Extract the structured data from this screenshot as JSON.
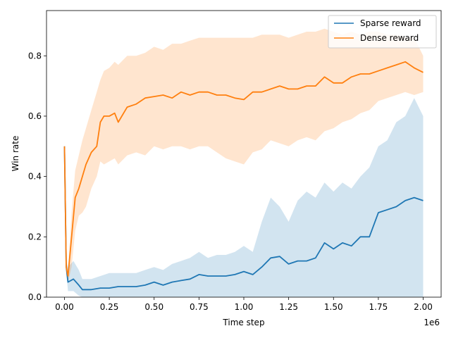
{
  "chart_data": {
    "type": "line",
    "title": "",
    "xlabel": "Time step",
    "ylabel": "Win rate",
    "x_offset_label": "1e6",
    "xlim": [
      -0.1,
      2.1
    ],
    "ylim": [
      0.0,
      0.95
    ],
    "x_ticks": [
      0.0,
      0.25,
      0.5,
      0.75,
      1.0,
      1.25,
      1.5,
      1.75,
      2.0
    ],
    "x_tick_labels": [
      "0.00",
      "0.25",
      "0.50",
      "0.75",
      "1.00",
      "1.25",
      "1.50",
      "1.75",
      "2.00"
    ],
    "y_ticks": [
      0.0,
      0.2,
      0.4,
      0.6,
      0.8
    ],
    "y_tick_labels": [
      "0.0",
      "0.2",
      "0.4",
      "0.6",
      "0.8"
    ],
    "grid": false,
    "legend_position": "top-right",
    "series": [
      {
        "name": "Sparse reward",
        "color": "#1f77b4",
        "band_color": "#1f77b4",
        "x": [
          0.0,
          0.01,
          0.02,
          0.05,
          0.08,
          0.1,
          0.15,
          0.2,
          0.25,
          0.3,
          0.35,
          0.4,
          0.45,
          0.5,
          0.55,
          0.6,
          0.65,
          0.7,
          0.75,
          0.8,
          0.85,
          0.9,
          0.95,
          1.0,
          1.05,
          1.1,
          1.15,
          1.2,
          1.25,
          1.3,
          1.35,
          1.4,
          1.45,
          1.5,
          1.55,
          1.6,
          1.65,
          1.7,
          1.75,
          1.8,
          1.85,
          1.9,
          1.95,
          2.0
        ],
        "values": [
          0.5,
          0.1,
          0.05,
          0.06,
          0.04,
          0.025,
          0.025,
          0.03,
          0.03,
          0.035,
          0.035,
          0.035,
          0.04,
          0.05,
          0.04,
          0.05,
          0.055,
          0.06,
          0.075,
          0.07,
          0.07,
          0.07,
          0.075,
          0.085,
          0.075,
          0.1,
          0.13,
          0.135,
          0.11,
          0.12,
          0.12,
          0.13,
          0.18,
          0.16,
          0.18,
          0.17,
          0.2,
          0.2,
          0.28,
          0.29,
          0.3,
          0.32,
          0.33,
          0.32
        ],
        "lower": [
          0.5,
          0.08,
          0.02,
          0.02,
          0.005,
          0.0,
          0.0,
          0.0,
          0.0,
          0.0,
          0.0,
          0.0,
          0.0,
          0.0,
          0.0,
          0.0,
          0.0,
          0.0,
          0.0,
          0.0,
          0.0,
          0.0,
          0.0,
          0.0,
          0.0,
          0.0,
          0.0,
          0.0,
          0.0,
          0.0,
          0.0,
          0.0,
          0.0,
          0.0,
          0.0,
          0.0,
          0.0,
          0.0,
          0.0,
          0.0,
          0.0,
          0.0,
          0.0,
          0.0
        ],
        "upper": [
          0.5,
          0.12,
          0.1,
          0.12,
          0.09,
          0.06,
          0.06,
          0.07,
          0.08,
          0.08,
          0.08,
          0.08,
          0.09,
          0.1,
          0.09,
          0.11,
          0.12,
          0.13,
          0.15,
          0.13,
          0.14,
          0.14,
          0.15,
          0.17,
          0.15,
          0.25,
          0.33,
          0.3,
          0.25,
          0.32,
          0.35,
          0.33,
          0.38,
          0.35,
          0.38,
          0.36,
          0.4,
          0.43,
          0.5,
          0.52,
          0.58,
          0.6,
          0.66,
          0.6
        ]
      },
      {
        "name": "Dense reward",
        "color": "#ff7f0e",
        "band_color": "#ff7f0e",
        "x": [
          0.0,
          0.01,
          0.02,
          0.04,
          0.06,
          0.08,
          0.1,
          0.12,
          0.15,
          0.18,
          0.2,
          0.22,
          0.25,
          0.28,
          0.3,
          0.35,
          0.4,
          0.45,
          0.5,
          0.55,
          0.6,
          0.65,
          0.7,
          0.75,
          0.8,
          0.85,
          0.9,
          0.95,
          1.0,
          1.05,
          1.1,
          1.15,
          1.2,
          1.25,
          1.3,
          1.35,
          1.4,
          1.45,
          1.5,
          1.55,
          1.6,
          1.65,
          1.7,
          1.75,
          1.8,
          1.85,
          1.9,
          1.95,
          2.0
        ],
        "values": [
          0.5,
          0.1,
          0.07,
          0.2,
          0.33,
          0.36,
          0.4,
          0.44,
          0.48,
          0.5,
          0.58,
          0.6,
          0.6,
          0.61,
          0.58,
          0.63,
          0.64,
          0.66,
          0.665,
          0.67,
          0.66,
          0.68,
          0.67,
          0.68,
          0.68,
          0.67,
          0.67,
          0.66,
          0.655,
          0.68,
          0.68,
          0.69,
          0.7,
          0.69,
          0.69,
          0.7,
          0.7,
          0.73,
          0.71,
          0.71,
          0.73,
          0.74,
          0.74,
          0.75,
          0.76,
          0.77,
          0.78,
          0.76,
          0.745
        ],
        "lower": [
          0.5,
          0.08,
          0.05,
          0.1,
          0.22,
          0.27,
          0.28,
          0.3,
          0.36,
          0.4,
          0.45,
          0.44,
          0.45,
          0.46,
          0.44,
          0.47,
          0.48,
          0.47,
          0.5,
          0.49,
          0.5,
          0.5,
          0.49,
          0.5,
          0.5,
          0.48,
          0.46,
          0.45,
          0.44,
          0.48,
          0.49,
          0.52,
          0.51,
          0.5,
          0.52,
          0.53,
          0.52,
          0.55,
          0.56,
          0.58,
          0.59,
          0.61,
          0.62,
          0.65,
          0.66,
          0.67,
          0.68,
          0.67,
          0.68
        ],
        "upper": [
          0.5,
          0.12,
          0.09,
          0.28,
          0.42,
          0.47,
          0.52,
          0.56,
          0.62,
          0.68,
          0.72,
          0.75,
          0.76,
          0.78,
          0.77,
          0.8,
          0.8,
          0.81,
          0.83,
          0.82,
          0.84,
          0.84,
          0.85,
          0.86,
          0.86,
          0.86,
          0.86,
          0.86,
          0.86,
          0.86,
          0.87,
          0.87,
          0.87,
          0.86,
          0.87,
          0.88,
          0.88,
          0.89,
          0.88,
          0.87,
          0.88,
          0.87,
          0.88,
          0.88,
          0.87,
          0.87,
          0.86,
          0.86,
          0.8
        ]
      }
    ]
  }
}
